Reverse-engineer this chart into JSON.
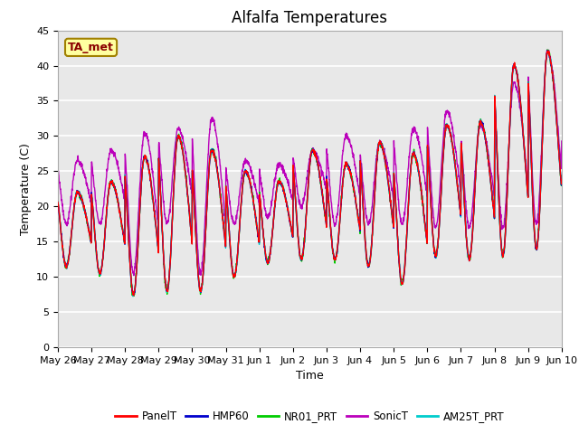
{
  "title": "Alfalfa Temperatures",
  "xlabel": "Time",
  "ylabel": "Temperature (C)",
  "ylim": [
    0,
    45
  ],
  "yticks": [
    0,
    5,
    10,
    15,
    20,
    25,
    30,
    35,
    40,
    45
  ],
  "annotation_text": "TA_met",
  "annotation_color": "#8B0000",
  "annotation_bg": "#FFFFA0",
  "annotation_border": "#A08000",
  "series_colors": {
    "PanelT": "#FF0000",
    "HMP60": "#0000CC",
    "NR01_PRT": "#00CC00",
    "SonicT": "#BB00BB",
    "AM25T_PRT": "#00CCCC"
  },
  "legend_labels": [
    "PanelT",
    "HMP60",
    "NR01_PRT",
    "SonicT",
    "AM25T_PRT"
  ],
  "x_tick_labels": [
    "May 26",
    "May 27",
    "May 28",
    "May 29",
    "May 30",
    "May 31",
    "Jun 1",
    "Jun 2",
    "Jun 3",
    "Jun 4",
    "Jun 5",
    "Jun 6",
    "Jun 7",
    "Jun 8",
    "Jun 9",
    "Jun 10"
  ],
  "bg_color": "#E8E8E8",
  "fig_bg_color": "#FFFFFF",
  "grid_color": "#FFFFFF",
  "title_fontsize": 12,
  "label_fontsize": 9,
  "tick_fontsize": 8,
  "linewidth": 1.0,
  "day_mins_base": [
    11.5,
    10.5,
    7.5,
    8.0,
    8.0,
    10.0,
    12.0,
    12.5,
    12.5,
    11.5,
    9.0,
    13.0,
    12.5,
    13.0,
    14.0,
    22.0
  ],
  "day_maxs_base": [
    22.0,
    23.5,
    27.0,
    30.0,
    28.0,
    25.0,
    23.5,
    28.0,
    26.0,
    29.0,
    27.5,
    31.5,
    32.0,
    40.0,
    42.0,
    24.0
  ],
  "day_mins_sonic": [
    17.5,
    17.5,
    10.5,
    17.5,
    10.5,
    17.5,
    18.5,
    20.0,
    17.5,
    17.5,
    17.5,
    17.0,
    17.0,
    17.0,
    17.5,
    29.0
  ],
  "day_maxs_sonic": [
    26.5,
    28.0,
    30.5,
    31.0,
    32.5,
    26.5,
    26.0,
    28.0,
    30.0,
    29.0,
    31.0,
    33.5,
    31.5,
    37.5,
    42.0,
    29.0
  ]
}
